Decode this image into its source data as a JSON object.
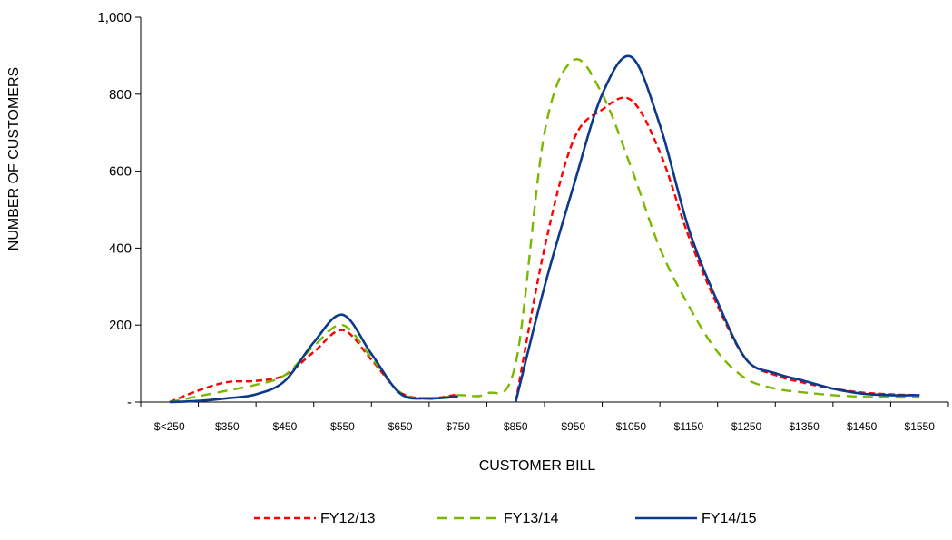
{
  "chart_data": {
    "type": "line",
    "smooth": true,
    "categories": [
      "$<250",
      "$350",
      "$450",
      "$550",
      "$650",
      "$750",
      "$850",
      "$950",
      "$1050",
      "$1150",
      "$1250",
      "$1350",
      "$1450",
      "$1550"
    ],
    "y_tick_labels": [
      "-",
      "200",
      "400",
      "600",
      "800",
      "1,000"
    ],
    "y_tick_values": [
      0,
      200,
      400,
      600,
      800,
      1000
    ],
    "ylim": [
      0,
      1000
    ],
    "xlabel": "CUSTOMER BILL",
    "ylabel": "NUMBER OF CUSTOMERS",
    "legend_position": "bottom",
    "grid": false,
    "gap_between": [
      "$750",
      "$850"
    ],
    "series": [
      {
        "name": "FY12/13",
        "color": "#ff0000",
        "dash": "dashed",
        "x": [
          "$<250",
          "$300",
          "$350",
          "$400",
          "$450",
          "$500",
          "$550",
          "$600",
          "$650",
          "$700",
          "$750",
          "$850",
          "$900",
          "$950",
          "$1000",
          "$1050",
          "$1100",
          "$1150",
          "$1200",
          "$1250",
          "$1300",
          "$1350",
          "$1400",
          "$1450",
          "$1500",
          "$1550"
        ],
        "y": [
          0,
          30,
          52,
          55,
          70,
          130,
          187,
          110,
          25,
          10,
          20,
          0,
          400,
          680,
          760,
          785,
          650,
          430,
          250,
          110,
          70,
          50,
          35,
          25,
          20,
          18
        ]
      },
      {
        "name": "FY13/14",
        "color": "#7ab800",
        "dash": "dashed-long",
        "x": [
          "$<250",
          "$300",
          "$350",
          "$400",
          "$450",
          "$500",
          "$550",
          "$600",
          "$650",
          "$700",
          "$750",
          "$800",
          "$850",
          "$900",
          "$950",
          "$1000",
          "$1050",
          "$1100",
          "$1150",
          "$1200",
          "$1250",
          "$1300",
          "$1350",
          "$1400",
          "$1450",
          "$1500",
          "$1550"
        ],
        "y": [
          0,
          15,
          30,
          45,
          70,
          145,
          200,
          115,
          25,
          8,
          18,
          22,
          100,
          700,
          888,
          800,
          610,
          400,
          250,
          130,
          60,
          35,
          25,
          18,
          14,
          12,
          12
        ]
      },
      {
        "name": "FY14/15",
        "color": "#0b3a8c",
        "dash": "solid",
        "x": [
          "$<250",
          "$300",
          "$350",
          "$400",
          "$450",
          "$500",
          "$550",
          "$600",
          "$650",
          "$700",
          "$750",
          "$850",
          "$900",
          "$950",
          "$1000",
          "$1050",
          "$1100",
          "$1150",
          "$1200",
          "$1250",
          "$1300",
          "$1350",
          "$1400",
          "$1450",
          "$1500",
          "$1550"
        ],
        "y": [
          0,
          3,
          10,
          20,
          55,
          155,
          227,
          125,
          22,
          10,
          14,
          0,
          300,
          560,
          800,
          897,
          720,
          450,
          260,
          110,
          75,
          55,
          35,
          22,
          18,
          18
        ]
      }
    ]
  }
}
